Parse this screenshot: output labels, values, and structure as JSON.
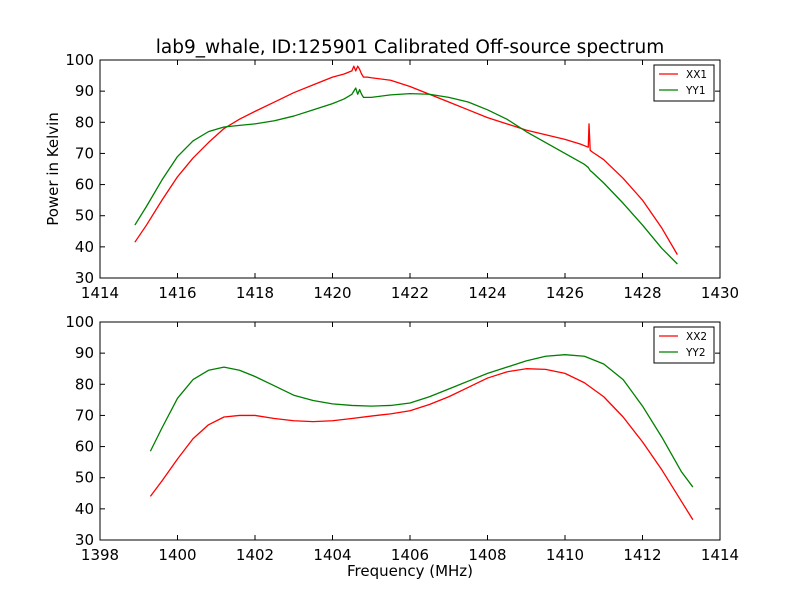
{
  "figure": {
    "title": "lab9_whale, ID:125901 Calibrated Off-source spectrum",
    "ylabel": "Power in Kelvin",
    "xlabel": "Frequency (MHz)"
  },
  "colors": {
    "XX": "#ff0000",
    "YY": "#008000",
    "axes": "#000000"
  },
  "chart_data": [
    {
      "type": "line",
      "xlim": [
        1414,
        1430
      ],
      "ylim": [
        30,
        100
      ],
      "xticks": [
        1414,
        1416,
        1418,
        1420,
        1422,
        1424,
        1426,
        1428,
        1430
      ],
      "yticks": [
        30,
        40,
        50,
        60,
        70,
        80,
        90,
        100
      ],
      "grid": false,
      "legend": "top-right",
      "series": [
        {
          "name": "XX1",
          "color": "#ff0000",
          "x": [
            1414.9,
            1415.2,
            1415.6,
            1416.0,
            1416.4,
            1416.8,
            1417.2,
            1417.6,
            1418.0,
            1418.5,
            1419.0,
            1419.5,
            1420.0,
            1420.3,
            1420.5,
            1420.55,
            1420.6,
            1420.65,
            1420.7,
            1420.75,
            1420.8,
            1420.9,
            1421.0,
            1421.5,
            1422.0,
            1422.5,
            1423.0,
            1423.5,
            1424.0,
            1424.5,
            1425.0,
            1425.5,
            1426.0,
            1426.4,
            1426.6,
            1426.62,
            1426.65,
            1426.7,
            1427.0,
            1427.5,
            1428.0,
            1428.5,
            1428.9
          ],
          "y": [
            41.5,
            47.0,
            55.0,
            62.5,
            68.5,
            73.5,
            78.0,
            81.0,
            83.5,
            86.5,
            89.5,
            92.0,
            94.5,
            95.5,
            96.5,
            98.0,
            96.5,
            98.0,
            97.0,
            95.5,
            94.5,
            94.5,
            94.3,
            93.5,
            91.5,
            89.0,
            86.5,
            84.0,
            81.5,
            79.5,
            77.5,
            76.0,
            74.5,
            73.0,
            72.0,
            79.5,
            71.0,
            70.5,
            68.0,
            62.0,
            55.0,
            46.0,
            37.5
          ]
        },
        {
          "name": "YY1",
          "color": "#008000",
          "x": [
            1414.9,
            1415.2,
            1415.6,
            1416.0,
            1416.4,
            1416.8,
            1417.2,
            1417.6,
            1418.0,
            1418.5,
            1419.0,
            1419.5,
            1420.0,
            1420.3,
            1420.5,
            1420.6,
            1420.65,
            1420.7,
            1420.75,
            1420.8,
            1421.0,
            1421.5,
            1422.0,
            1422.5,
            1423.0,
            1423.5,
            1424.0,
            1424.5,
            1425.0,
            1425.5,
            1426.0,
            1426.5,
            1426.6,
            1426.65,
            1426.7,
            1427.0,
            1427.5,
            1428.0,
            1428.5,
            1428.9
          ],
          "y": [
            47.0,
            53.0,
            61.5,
            69.0,
            74.0,
            77.0,
            78.5,
            79.0,
            79.5,
            80.5,
            82.0,
            84.0,
            86.0,
            87.5,
            89.0,
            91.0,
            89.0,
            90.5,
            89.0,
            88.0,
            88.0,
            88.8,
            89.2,
            89.0,
            88.0,
            86.5,
            84.0,
            81.0,
            77.0,
            73.5,
            70.0,
            66.5,
            65.5,
            64.5,
            64.0,
            60.5,
            54.0,
            47.0,
            39.5,
            34.5
          ]
        }
      ]
    },
    {
      "type": "line",
      "xlim": [
        1398,
        1414
      ],
      "ylim": [
        30,
        100
      ],
      "xticks": [
        1398,
        1400,
        1402,
        1404,
        1406,
        1408,
        1410,
        1412,
        1414
      ],
      "yticks": [
        30,
        40,
        50,
        60,
        70,
        80,
        90,
        100
      ],
      "grid": false,
      "legend": "top-right",
      "series": [
        {
          "name": "XX2",
          "color": "#ff0000",
          "x": [
            1399.3,
            1399.6,
            1400.0,
            1400.4,
            1400.8,
            1401.2,
            1401.6,
            1402.0,
            1402.5,
            1403.0,
            1403.5,
            1404.0,
            1404.5,
            1405.0,
            1405.5,
            1406.0,
            1406.5,
            1407.0,
            1407.5,
            1408.0,
            1408.5,
            1409.0,
            1409.5,
            1410.0,
            1410.5,
            1411.0,
            1411.5,
            1412.0,
            1412.5,
            1413.0,
            1413.3
          ],
          "y": [
            44.0,
            49.0,
            56.0,
            62.5,
            67.0,
            69.5,
            70.0,
            70.0,
            69.0,
            68.3,
            68.0,
            68.3,
            69.0,
            69.8,
            70.5,
            71.5,
            73.5,
            76.0,
            79.0,
            82.0,
            84.0,
            85.0,
            84.8,
            83.5,
            80.5,
            76.0,
            69.5,
            61.5,
            52.5,
            42.5,
            36.5
          ]
        },
        {
          "name": "YY2",
          "color": "#008000",
          "x": [
            1399.3,
            1399.6,
            1400.0,
            1400.4,
            1400.8,
            1401.2,
            1401.6,
            1402.0,
            1402.5,
            1403.0,
            1403.5,
            1404.0,
            1404.5,
            1405.0,
            1405.5,
            1406.0,
            1406.5,
            1407.0,
            1407.5,
            1408.0,
            1408.5,
            1409.0,
            1409.5,
            1410.0,
            1410.5,
            1411.0,
            1411.5,
            1412.0,
            1412.5,
            1413.0,
            1413.3
          ],
          "y": [
            58.5,
            66.0,
            75.5,
            81.5,
            84.5,
            85.5,
            84.5,
            82.5,
            79.5,
            76.5,
            74.8,
            73.7,
            73.2,
            73.0,
            73.2,
            74.0,
            76.0,
            78.5,
            81.0,
            83.5,
            85.5,
            87.5,
            89.0,
            89.5,
            89.0,
            86.5,
            81.5,
            73.0,
            63.0,
            52.0,
            47.0
          ]
        }
      ]
    }
  ]
}
